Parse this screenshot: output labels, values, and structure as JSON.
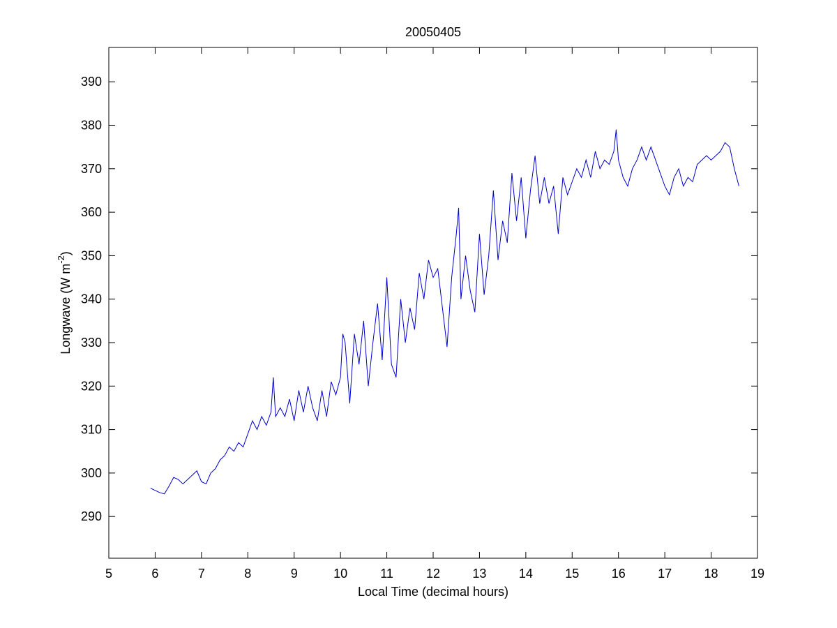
{
  "chart_data": {
    "type": "line",
    "title": "20050405",
    "xlabel": "Local Time (decimal hours)",
    "ylabel": {
      "text": "Longwave (W m",
      "superscript": "-2",
      "suffix": ")"
    },
    "x": [
      5.9,
      6.0,
      6.1,
      6.2,
      6.3,
      6.4,
      6.5,
      6.6,
      6.7,
      6.8,
      6.9,
      7.0,
      7.1,
      7.2,
      7.3,
      7.4,
      7.5,
      7.6,
      7.7,
      7.8,
      7.9,
      8.0,
      8.1,
      8.2,
      8.3,
      8.4,
      8.5,
      8.55,
      8.6,
      8.7,
      8.8,
      8.9,
      9.0,
      9.1,
      9.2,
      9.3,
      9.4,
      9.5,
      9.6,
      9.7,
      9.8,
      9.9,
      10.0,
      10.05,
      10.1,
      10.2,
      10.3,
      10.4,
      10.5,
      10.6,
      10.7,
      10.8,
      10.9,
      11.0,
      11.1,
      11.2,
      11.3,
      11.4,
      11.5,
      11.6,
      11.7,
      11.8,
      11.9,
      12.0,
      12.1,
      12.2,
      12.3,
      12.4,
      12.5,
      12.55,
      12.6,
      12.7,
      12.8,
      12.9,
      13.0,
      13.1,
      13.2,
      13.3,
      13.4,
      13.5,
      13.6,
      13.7,
      13.8,
      13.9,
      14.0,
      14.1,
      14.2,
      14.3,
      14.4,
      14.5,
      14.6,
      14.7,
      14.8,
      14.9,
      15.0,
      15.1,
      15.2,
      15.3,
      15.4,
      15.5,
      15.6,
      15.7,
      15.8,
      15.9,
      15.95,
      16.0,
      16.1,
      16.2,
      16.3,
      16.4,
      16.5,
      16.6,
      16.7,
      16.8,
      16.9,
      17.0,
      17.1,
      17.2,
      17.3,
      17.4,
      17.5,
      17.6,
      17.7,
      17.8,
      17.9,
      18.0,
      18.1,
      18.2,
      18.3,
      18.4,
      18.5,
      18.6
    ],
    "series": [
      {
        "color": "#0000cc",
        "values": [
          296.5,
          296,
          295.5,
          295.2,
          297,
          299,
          298.5,
          297.5,
          298.5,
          299.5,
          300.5,
          298,
          297.5,
          300,
          301,
          303,
          304,
          306,
          305,
          307,
          306,
          309,
          312,
          310,
          313,
          311,
          314,
          322,
          313,
          315,
          313,
          317,
          312,
          319,
          314,
          320,
          315,
          312,
          319,
          313,
          321,
          318,
          322,
          332,
          330,
          316,
          332,
          325,
          335,
          320,
          330,
          339,
          326,
          345,
          325,
          322,
          340,
          330,
          338,
          333,
          346,
          340,
          349,
          345,
          347,
          338,
          329,
          345,
          355,
          361,
          340,
          350,
          342,
          337,
          355,
          341,
          350,
          365,
          349,
          358,
          353,
          369,
          358,
          368,
          354,
          365,
          373,
          362,
          368,
          362,
          366,
          355,
          368,
          364,
          367,
          370,
          368,
          372,
          368,
          374,
          370,
          372,
          371,
          374,
          379,
          372,
          368,
          366,
          370,
          372,
          375,
          372,
          375,
          372,
          369,
          366,
          364,
          368,
          370,
          366,
          368,
          367,
          371,
          372,
          373,
          372,
          373,
          374,
          376,
          375,
          370,
          366
        ]
      }
    ],
    "xlim": [
      5,
      19
    ],
    "xticks": [
      5,
      6,
      7,
      8,
      9,
      10,
      11,
      12,
      13,
      14,
      15,
      16,
      17,
      18,
      19
    ],
    "ylim": [
      280.4,
      397.9
    ],
    "yticks": [
      290,
      300,
      310,
      320,
      330,
      340,
      350,
      360,
      370,
      380,
      390
    ]
  }
}
